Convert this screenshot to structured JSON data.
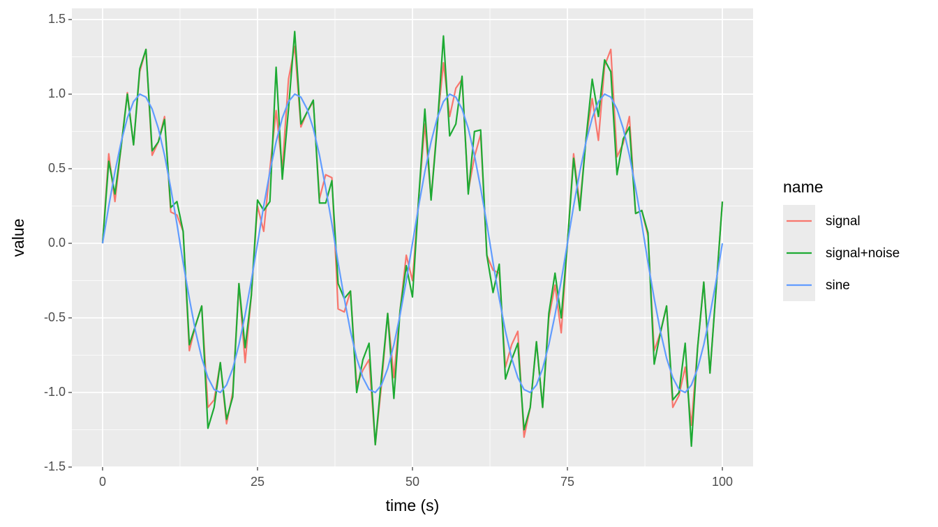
{
  "chart_data": {
    "type": "line",
    "x_label": "time (s)",
    "y_label": "value",
    "legend_title": "name",
    "legend_position": "right",
    "grid": true,
    "x": [
      0,
      1,
      2,
      3,
      4,
      5,
      6,
      7,
      8,
      9,
      10,
      11,
      12,
      13,
      14,
      15,
      16,
      17,
      18,
      19,
      20,
      21,
      22,
      23,
      24,
      25,
      26,
      27,
      28,
      29,
      30,
      31,
      32,
      33,
      34,
      35,
      36,
      37,
      38,
      39,
      40,
      41,
      42,
      43,
      44,
      45,
      46,
      47,
      48,
      49,
      50,
      51,
      52,
      53,
      54,
      55,
      56,
      57,
      58,
      59,
      60,
      61,
      62,
      63,
      64,
      65,
      66,
      67,
      68,
      69,
      70,
      71,
      72,
      73,
      74,
      75,
      76,
      77,
      78,
      79,
      80,
      81,
      82,
      83,
      84,
      85,
      86,
      87,
      88,
      89,
      90,
      91,
      92,
      93,
      94,
      95,
      96,
      97,
      98,
      99,
      100
    ],
    "xlim": [
      -4.95,
      104.95
    ],
    "xticks": [
      0,
      25,
      50,
      75,
      100
    ],
    "ylim": [
      -1.5,
      1.575
    ],
    "yticks": [
      -1.5,
      -0.5,
      {
        "value": -1,
        "label": "-1.0"
      },
      {
        "value": 0,
        "label": "0.0"
      },
      0.5,
      {
        "value": 1,
        "label": "1.0"
      },
      1.5
    ],
    "series": [
      {
        "name": "signal",
        "color": "#F8766D",
        "values": [
          0,
          0.6,
          0.28,
          0.65,
          1.01,
          0.66,
          1.15,
          1.3,
          0.59,
          0.68,
          0.85,
          0.21,
          0.19,
          0.08,
          -0.72,
          -0.55,
          -0.42,
          -1.1,
          -1.05,
          -0.8,
          -1.21,
          -1,
          -0.27,
          -0.8,
          -0.35,
          0.25,
          0.08,
          0.5,
          0.89,
          0.5,
          1.1,
          1.32,
          0.78,
          0.88,
          0.95,
          0.3,
          0.46,
          0.44,
          -0.44,
          -0.46,
          -0.32,
          -0.95,
          -0.85,
          -0.78,
          -1.35,
          -0.95,
          -0.47,
          -0.9,
          -0.45,
          -0.08,
          -0.25,
          0.3,
          0.8,
          0.3,
          0.8,
          1.21,
          0.85,
          1.04,
          1.1,
          0.35,
          0.58,
          0.73,
          -0.08,
          -0.18,
          -0.2,
          -0.83,
          -0.68,
          -0.59,
          -1.3,
          -1.1,
          -0.66,
          -1.1,
          -0.5,
          -0.28,
          -0.6,
          0,
          0.6,
          0.25,
          0.7,
          0.97,
          0.69,
          1.19,
          1.3,
          0.58,
          0.67,
          0.85,
          0.2,
          0.22,
          0.05,
          -0.72,
          -0.6,
          -0.42,
          -1.1,
          -1.02,
          -0.83,
          -1.22,
          -0.7,
          -0.26,
          -0.87,
          -0.3,
          0.28
        ]
      },
      {
        "name": "signal+noise",
        "color": "#1DAA33",
        "values": [
          0,
          0.55,
          0.33,
          0.65,
          1,
          0.66,
          1.17,
          1.3,
          0.62,
          0.68,
          0.83,
          0.24,
          0.28,
          0.08,
          -0.68,
          -0.55,
          -0.42,
          -1.24,
          -1.1,
          -0.8,
          -1.18,
          -1.03,
          -0.27,
          -0.7,
          -0.35,
          0.29,
          0.22,
          0.28,
          1.18,
          0.43,
          0.9,
          1.42,
          0.8,
          0.88,
          0.96,
          0.27,
          0.27,
          0.42,
          -0.27,
          -0.37,
          -0.32,
          -1,
          -0.78,
          -0.67,
          -1.35,
          -0.9,
          -0.47,
          -1.04,
          -0.45,
          -0.15,
          -0.36,
          0.3,
          0.9,
          0.29,
          0.78,
          1.39,
          0.72,
          0.8,
          1.12,
          0.33,
          0.75,
          0.76,
          -0.08,
          -0.33,
          -0.14,
          -0.91,
          -0.78,
          -0.67,
          -1.25,
          -1.1,
          -0.66,
          -1.1,
          -0.47,
          -0.2,
          -0.5,
          0,
          0.57,
          0.22,
          0.7,
          1.1,
          0.85,
          1.23,
          1.15,
          0.46,
          0.7,
          0.78,
          0.2,
          0.22,
          0.07,
          -0.81,
          -0.6,
          -0.42,
          -1.05,
          -1,
          -0.67,
          -1.36,
          -0.7,
          -0.26,
          -0.87,
          -0.3,
          0.28
        ]
      },
      {
        "name": "sine",
        "color": "#619CFF",
        "values": [
          0,
          0.25,
          0.48,
          0.68,
          0.84,
          0.95,
          1,
          0.98,
          0.9,
          0.77,
          0.59,
          0.37,
          0.13,
          -0.13,
          -0.37,
          -0.59,
          -0.77,
          -0.9,
          -0.98,
          -1,
          -0.95,
          -0.84,
          -0.68,
          -0.48,
          -0.25,
          0,
          0.25,
          0.48,
          0.68,
          0.84,
          0.95,
          1,
          0.98,
          0.9,
          0.77,
          0.59,
          0.37,
          0.13,
          -0.13,
          -0.37,
          -0.59,
          -0.77,
          -0.9,
          -0.98,
          -1,
          -0.95,
          -0.84,
          -0.68,
          -0.48,
          -0.25,
          0,
          0.25,
          0.48,
          0.68,
          0.84,
          0.95,
          1,
          0.98,
          0.9,
          0.77,
          0.59,
          0.37,
          0.13,
          -0.13,
          -0.37,
          -0.59,
          -0.77,
          -0.9,
          -0.98,
          -1,
          -0.95,
          -0.84,
          -0.68,
          -0.48,
          -0.25,
          0,
          0.25,
          0.48,
          0.68,
          0.84,
          0.95,
          1,
          0.98,
          0.9,
          0.77,
          0.59,
          0.37,
          0.13,
          -0.13,
          -0.37,
          -0.59,
          -0.77,
          -0.9,
          -0.98,
          -1,
          -0.95,
          -0.84,
          -0.68,
          -0.48,
          -0.25,
          0
        ]
      }
    ]
  }
}
